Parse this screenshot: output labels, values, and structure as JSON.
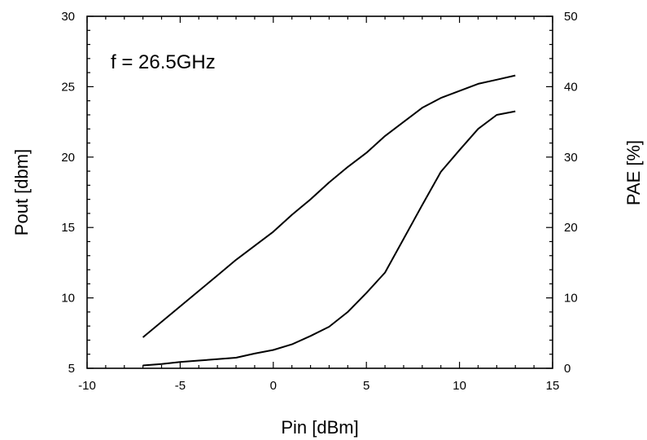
{
  "chart_data": {
    "type": "line",
    "annotation": "f = 26.5GHz",
    "xlabel": "Pin [dBm]",
    "ylabel": "Pout [dbm]",
    "y2label": "PAE [%]",
    "xlim": [
      -10,
      15
    ],
    "ylim": [
      5,
      30
    ],
    "y2lim": [
      0,
      50
    ],
    "xticks": [
      "-10",
      "-5",
      "0",
      "5",
      "10",
      "15"
    ],
    "yticks": [
      "5",
      "10",
      "15",
      "20",
      "25",
      "30"
    ],
    "y2ticks": [
      "0",
      "10",
      "20",
      "30",
      "40",
      "50"
    ],
    "grid": false,
    "series": [
      {
        "axis": "left",
        "x": [
          -7,
          -6,
          -5,
          -4,
          -3,
          -2,
          -1,
          0,
          1,
          2,
          3,
          4,
          5,
          6,
          7,
          8,
          9,
          10,
          11,
          12,
          13
        ],
        "values": [
          7.2,
          8.3,
          9.4,
          10.5,
          11.6,
          12.7,
          13.7,
          14.7,
          15.9,
          17.0,
          18.2,
          19.3,
          20.3,
          21.5,
          22.5,
          23.5,
          24.2,
          24.7,
          25.2,
          25.5,
          25.8
        ]
      },
      {
        "axis": "right",
        "x": [
          -7,
          -6,
          -5,
          -4,
          -3,
          -2,
          -1,
          0,
          1,
          2,
          3,
          4,
          5,
          6,
          7,
          8,
          9,
          10,
          11,
          12,
          13
        ],
        "values": [
          0.4,
          0.6,
          0.9,
          1.1,
          1.3,
          1.5,
          2.1,
          2.6,
          3.4,
          4.6,
          5.9,
          8.0,
          10.7,
          13.6,
          18.4,
          23.2,
          27.9,
          31.0,
          34.0,
          36.0,
          36.5
        ]
      }
    ]
  }
}
